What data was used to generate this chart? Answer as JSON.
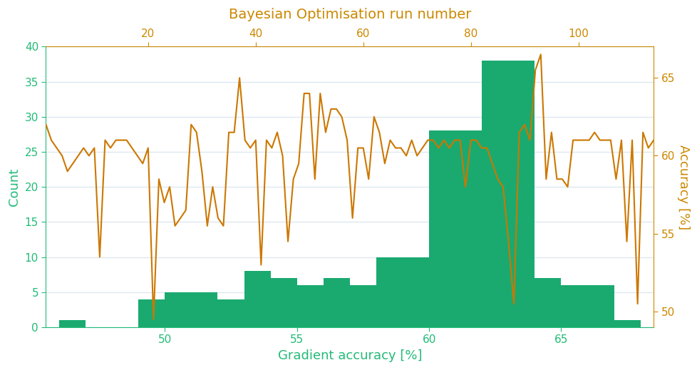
{
  "title": "Bayesian Optimisation run number",
  "xlabel_bottom": "Gradient accuracy [%]",
  "ylabel_left": "Count",
  "ylabel_right": "Accuracy [%]",
  "title_color": "#cc8800",
  "xlabel_color": "#22bb77",
  "ylabel_left_color": "#22bb77",
  "ylabel_right_color": "#cc8800",
  "tick_left_color": "#22bb77",
  "tick_bottom_color": "#22bb77",
  "tick_top_color": "#cc8800",
  "tick_right_color": "#cc8800",
  "histogram_color": "#1aaa70",
  "line_color": "#cc7700",
  "background_color": "#ffffff",
  "grid_color": "#dde8f0",
  "hist_bin_edges": [
    46,
    47,
    48,
    49,
    50,
    51,
    52,
    53,
    54,
    55,
    56,
    57,
    58,
    59,
    60,
    61,
    62,
    63,
    64,
    65,
    66,
    67,
    68
  ],
  "hist_counts": [
    1,
    0,
    0,
    4,
    5,
    5,
    4,
    8,
    7,
    6,
    7,
    6,
    10,
    10,
    28,
    28,
    38,
    38,
    7,
    6,
    6,
    1
  ],
  "n_runs": 114,
  "accuracy_values": [
    62.0,
    61.0,
    60.5,
    60.0,
    59.0,
    59.5,
    60.0,
    60.5,
    60.0,
    60.5,
    53.5,
    61.0,
    60.5,
    61.0,
    61.0,
    61.0,
    60.5,
    60.0,
    59.5,
    60.5,
    49.5,
    58.5,
    57.0,
    58.0,
    55.5,
    56.0,
    56.5,
    62.0,
    61.5,
    59.0,
    55.5,
    58.0,
    56.0,
    55.5,
    61.5,
    61.5,
    65.0,
    61.0,
    60.5,
    61.0,
    53.0,
    61.0,
    60.5,
    61.5,
    60.0,
    54.5,
    58.5,
    59.5,
    64.0,
    64.0,
    58.5,
    64.0,
    61.5,
    63.0,
    63.0,
    62.5,
    61.0,
    56.0,
    60.5,
    60.5,
    58.5,
    62.5,
    61.5,
    59.5,
    61.0,
    60.5,
    60.5,
    60.0,
    61.0,
    60.0,
    60.5,
    61.0,
    61.0,
    60.5,
    61.0,
    60.5,
    61.0,
    61.0,
    58.0,
    61.0,
    61.0,
    60.5,
    60.5,
    59.5,
    58.5,
    58.0,
    54.5,
    50.5,
    61.5,
    62.0,
    61.0,
    65.5,
    66.5,
    58.5,
    61.5,
    58.5,
    58.5,
    58.0,
    61.0,
    61.0,
    61.0,
    61.0,
    61.5,
    61.0,
    61.0,
    61.0,
    58.5,
    61.0,
    54.5,
    61.0,
    50.5,
    61.5,
    60.5,
    61.0
  ],
  "ylim_left": [
    0,
    40
  ],
  "ylim_right": [
    49,
    67
  ],
  "xlim": [
    45.5,
    68.5
  ],
  "xticks_bottom": [
    50,
    55,
    60,
    65
  ],
  "xticks_top": [
    20,
    40,
    60,
    80,
    100
  ],
  "yticks_left": [
    0,
    5,
    10,
    15,
    20,
    25,
    30,
    35,
    40
  ],
  "yticks_right": [
    50,
    55,
    60,
    65
  ]
}
